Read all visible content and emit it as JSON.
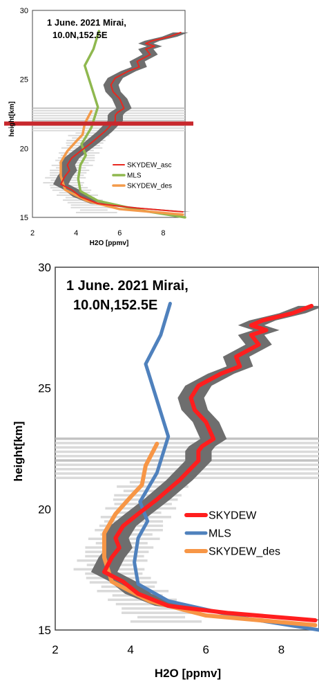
{
  "chart_data": [
    {
      "type": "line",
      "annotation_line1": "1 June. 2021 Mirai,",
      "annotation_line2": "10.0N,152.5E",
      "xlabel": "H2O [ppmv]",
      "ylabel": "height[km]",
      "xlim": [
        2,
        9
      ],
      "ylim": [
        15,
        30
      ],
      "x_ticks": [
        "2",
        "4",
        "6",
        "8"
      ],
      "y_ticks": [
        "15",
        "20",
        "25",
        "30"
      ],
      "grid": false,
      "legend_position": "center-right",
      "highlight_height_km": 21.8,
      "series": [
        {
          "name": "SKYDEW_asc",
          "color": "#e8281f",
          "x": [
            8.9,
            6.6,
            5.0,
            4.2,
            3.8,
            3.3,
            3.5,
            3.7,
            3.6,
            3.8,
            4.2,
            4.7,
            5.3,
            5.8,
            5.8,
            5.9,
            6.2,
            6.0,
            5.7,
            5.6,
            5.8,
            6.4,
            6.9,
            6.8,
            7.4,
            7.2,
            7.6,
            7.2,
            7.5,
            8.3,
            8.8
          ],
          "y": [
            15.4,
            15.7,
            16.0,
            16.5,
            17.0,
            17.4,
            18.0,
            18.4,
            18.8,
            19.3,
            19.8,
            20.4,
            21.2,
            22.0,
            22.4,
            22.6,
            22.9,
            23.6,
            24.1,
            24.6,
            25.1,
            25.6,
            25.9,
            26.3,
            26.8,
            27.2,
            27.4,
            27.6,
            27.8,
            28.1,
            28.4
          ]
        },
        {
          "name": "MLS",
          "color": "#8fb84f",
          "x": [
            9.0,
            7.0,
            5.0,
            4.2,
            4.1,
            4.2,
            4.45,
            4.25,
            4.7,
            5.0,
            4.6,
            4.4,
            4.8,
            5.05
          ],
          "y": [
            15.0,
            15.5,
            16.2,
            16.9,
            17.8,
            18.8,
            19.5,
            20.3,
            21.5,
            23.0,
            25.0,
            26.0,
            27.2,
            28.5
          ]
        },
        {
          "name": "SKYDEW_des",
          "color": "#f39a4a",
          "x": [
            8.9,
            6.0,
            4.5,
            3.5,
            3.3,
            3.3,
            3.6,
            4.0,
            4.3,
            4.4,
            4.7
          ],
          "y": [
            15.2,
            15.6,
            16.2,
            17.0,
            18.0,
            19.0,
            19.8,
            20.5,
            21.0,
            21.8,
            22.7
          ]
        }
      ]
    },
    {
      "type": "line",
      "annotation_line1": "1 June. 2021 Mirai,",
      "annotation_line2": "10.0N,152.5E",
      "xlabel": "H2O [ppmv]",
      "ylabel": "height[km]",
      "xlim": [
        2,
        9
      ],
      "ylim": [
        15,
        30
      ],
      "x_ticks": [
        "2",
        "4",
        "6",
        "8"
      ],
      "y_ticks": [
        "15",
        "20",
        "25",
        "30"
      ],
      "grid": false,
      "legend_position": "center-right",
      "series": [
        {
          "name": "SKYDEW",
          "color": "#ff1e1e",
          "x": [
            8.9,
            6.6,
            5.0,
            4.2,
            3.8,
            3.3,
            3.5,
            3.7,
            3.6,
            3.8,
            4.2,
            4.7,
            5.3,
            5.8,
            5.8,
            5.9,
            6.2,
            6.0,
            5.7,
            5.6,
            5.8,
            6.4,
            6.9,
            6.8,
            7.4,
            7.2,
            7.6,
            7.2,
            7.5,
            8.3,
            8.8
          ],
          "y": [
            15.4,
            15.7,
            16.0,
            16.5,
            17.0,
            17.4,
            18.0,
            18.4,
            18.8,
            19.3,
            19.8,
            20.4,
            21.2,
            22.0,
            22.4,
            22.6,
            22.9,
            23.6,
            24.1,
            24.6,
            25.1,
            25.6,
            25.9,
            26.3,
            26.8,
            27.2,
            27.4,
            27.6,
            27.8,
            28.1,
            28.4
          ]
        },
        {
          "name": "MLS",
          "color": "#4f81bd",
          "x": [
            9.0,
            7.0,
            5.0,
            4.2,
            4.1,
            4.2,
            4.45,
            4.25,
            4.7,
            5.0,
            4.6,
            4.4,
            4.8,
            5.05
          ],
          "y": [
            15.0,
            15.5,
            16.2,
            16.9,
            17.8,
            18.8,
            19.5,
            20.3,
            21.5,
            23.0,
            25.0,
            26.0,
            27.2,
            28.5
          ]
        },
        {
          "name": "SKYDEW_des",
          "color": "#f79646",
          "x": [
            8.9,
            6.0,
            4.5,
            3.5,
            3.3,
            3.3,
            3.6,
            4.0,
            4.3,
            4.4,
            4.7
          ],
          "y": [
            15.2,
            15.6,
            16.2,
            17.0,
            18.0,
            19.0,
            19.8,
            20.5,
            21.0,
            21.8,
            22.7
          ]
        }
      ]
    }
  ],
  "colors": {
    "uncertainty_band": "#6e6e6e",
    "horizontal_bars": "#d6d6d6",
    "highlight_line": "#c8282d"
  }
}
